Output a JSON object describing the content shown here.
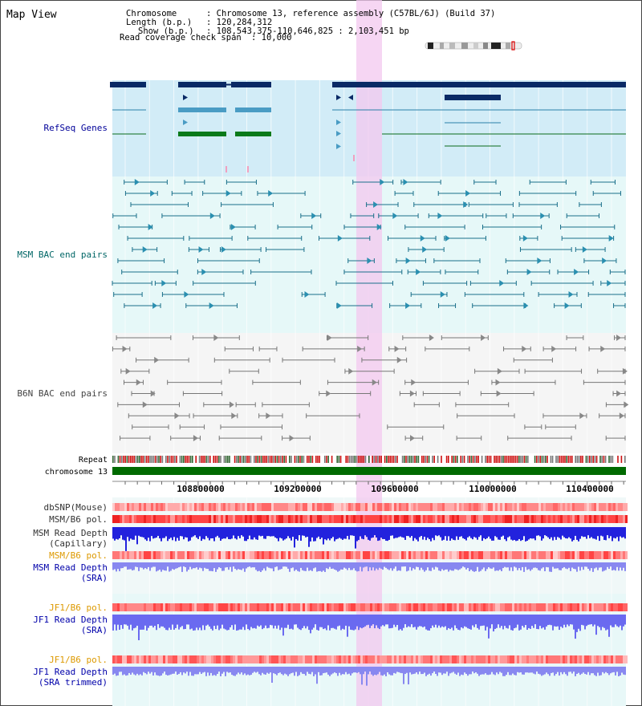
{
  "page": {
    "title": "Map View",
    "header": {
      "chromosome_label": "Chromosome",
      "chromosome_value": ": Chromosome 13, reference assembly (C57BL/6J) (Build 37)",
      "length_label": "Length (b.p.)",
      "length_value": ": 120,284,312",
      "show_label": "Show (b.p.)",
      "show_value": ": 108,543,375-110,646,825 : 2,103,451 bp",
      "span_label": "Read coverage check span",
      "span_value": ": 10,000"
    }
  },
  "tracks": {
    "refseq": {
      "label": "RefSeq Genes",
      "color": "#000099"
    },
    "msm_bac": {
      "label": "MSM BAC end pairs",
      "color": "#006666"
    },
    "b6n_bac": {
      "label": "B6N BAC end pairs",
      "color": "#444444"
    },
    "repeat": {
      "label": "Repeat"
    },
    "chrom": {
      "label": "chromosome 13"
    },
    "dbsnp": {
      "label": "dbSNP(Mouse)"
    },
    "msm_b6_pol_cap": {
      "label": "MSM/B6 pol."
    },
    "msm_depth_cap": {
      "label1": "MSM Read Depth",
      "label2": "(Capillary)"
    },
    "msm_b6_pol_sra": {
      "label": "MSM/B6 pol.",
      "color": "#dd9900"
    },
    "msm_depth_sra": {
      "label1": "MSM Read Depth",
      "label2": "(SRA)",
      "color": "#0000aa"
    },
    "jf1_b6_pol": {
      "label": "JF1/B6 pol.",
      "color": "#dd9900"
    },
    "jf1_depth_sra": {
      "label1": "JF1 Read Depth",
      "label2": "(SRA)",
      "color": "#0000aa"
    },
    "jf1_b6_pol2": {
      "label": "JF1/B6 pol.",
      "color": "#dd9900"
    },
    "jf1_depth_trim": {
      "label1": "JF1 Read Depth",
      "label2": "(SRA trimmed)",
      "color": "#0000aa"
    }
  },
  "axis": {
    "ticks": [
      "108800000",
      "109200000",
      "109600000",
      "110000000",
      "110400000"
    ]
  }
}
